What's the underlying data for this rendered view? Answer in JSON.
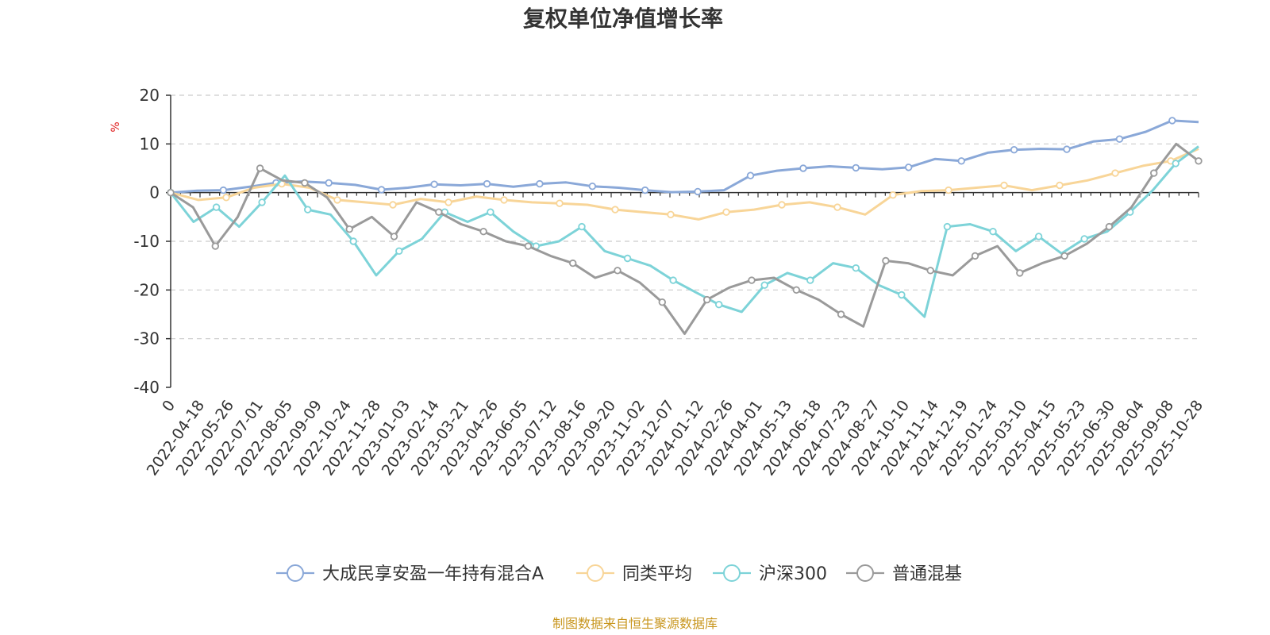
{
  "chart_data": {
    "type": "line",
    "title": "复权单位净值增长率",
    "ylabel": "%",
    "ylim": [
      -40,
      20
    ],
    "yticks": [
      20,
      10,
      0,
      -10,
      -20,
      -30,
      -40
    ],
    "grid": true,
    "legend_position": "bottom-center",
    "x_tick_labels": [
      "0",
      "2022-04-18",
      "2022-05-26",
      "2022-07-01",
      "2022-08-05",
      "2022-09-09",
      "2022-10-24",
      "2022-11-28",
      "2023-01-03",
      "2023-02-14",
      "2023-03-21",
      "2023-04-26",
      "2023-06-05",
      "2023-07-12",
      "2023-08-16",
      "2023-09-20",
      "2023-11-02",
      "2023-12-07",
      "2024-01-12",
      "2024-02-26",
      "2024-04-01",
      "2024-05-13",
      "2024-06-18",
      "2024-07-23",
      "2024-08-27",
      "2024-10-10",
      "2024-11-14",
      "2024-12-19",
      "2025-01-24",
      "2025-03-10",
      "2025-04-15",
      "2025-05-23",
      "2025-06-30",
      "2025-08-04",
      "2025-09-08",
      "2025-10-28"
    ],
    "series": [
      {
        "name": "大成民享安盈一年持有混合A",
        "color": "#8aa8d8",
        "values": [
          0,
          0.4,
          0.5,
          1.2,
          2.0,
          2.3,
          2.0,
          1.6,
          0.6,
          1.0,
          1.7,
          1.5,
          1.8,
          1.2,
          1.8,
          2.1,
          1.3,
          1.0,
          0.5,
          0.1,
          0.2,
          0.5,
          3.5,
          4.5,
          5.0,
          5.4,
          5.1,
          4.8,
          5.2,
          6.9,
          6.5,
          8.2,
          8.8,
          9.0,
          8.9,
          10.5,
          11.0,
          12.5,
          14.8,
          14.5
        ]
      },
      {
        "name": "同类平均",
        "color": "#f8d598",
        "values": [
          0,
          -1.5,
          -1.0,
          1.0,
          1.8,
          1.0,
          -1.5,
          -2.0,
          -2.5,
          -1.3,
          -2.0,
          -0.8,
          -1.5,
          -2.0,
          -2.2,
          -2.5,
          -3.5,
          -4.0,
          -4.5,
          -5.5,
          -4.0,
          -3.5,
          -2.5,
          -2.0,
          -3.0,
          -4.5,
          -0.5,
          0.3,
          0.5,
          1.0,
          1.5,
          0.5,
          1.5,
          2.5,
          4.0,
          5.5,
          6.5,
          9.0
        ]
      },
      {
        "name": "沪深300",
        "color": "#7dd3d8",
        "values": [
          0,
          -6.0,
          -3.0,
          -7.0,
          -2.0,
          3.5,
          -3.5,
          -4.5,
          -10.0,
          -17.0,
          -12.0,
          -9.5,
          -4.0,
          -6.0,
          -4.0,
          -8.0,
          -11.0,
          -10.0,
          -7.0,
          -12.0,
          -13.5,
          -15.0,
          -18.0,
          -20.5,
          -23.0,
          -24.5,
          -19.0,
          -16.5,
          -18.0,
          -14.5,
          -15.5,
          -19.0,
          -21.0,
          -25.5,
          -7.0,
          -6.5,
          -8.0,
          -12.0,
          -9.0,
          -12.5,
          -9.5,
          -8.0,
          -4.0,
          0.5,
          6.0,
          9.5
        ]
      },
      {
        "name": "普通混基",
        "color": "#9a9a9a",
        "values": [
          0,
          -3.0,
          -11.0,
          -5.0,
          5.0,
          2.5,
          2.0,
          -1.0,
          -7.5,
          -5.0,
          -9.0,
          -2.0,
          -4.0,
          -6.5,
          -8.0,
          -10.0,
          -11.0,
          -13.0,
          -14.5,
          -17.5,
          -16.0,
          -18.5,
          -22.5,
          -29.0,
          -22.0,
          -19.5,
          -18.0,
          -17.5,
          -20.0,
          -22.0,
          -25.0,
          -27.5,
          -14.0,
          -14.5,
          -16.0,
          -17.0,
          -13.0,
          -11.0,
          -16.5,
          -14.5,
          -13.0,
          -10.5,
          -7.0,
          -3.0,
          4.0,
          10.0,
          6.5
        ]
      }
    ]
  },
  "legend": {
    "items": [
      {
        "label": "大成民享安盈一年持有混合A",
        "color": "#8aa8d8"
      },
      {
        "label": "同类平均",
        "color": "#f8d598"
      },
      {
        "label": "沪深300",
        "color": "#7dd3d8"
      },
      {
        "label": "普通混基",
        "color": "#9a9a9a"
      }
    ]
  },
  "footer": {
    "source": "制图数据来自恒生聚源数据库"
  }
}
